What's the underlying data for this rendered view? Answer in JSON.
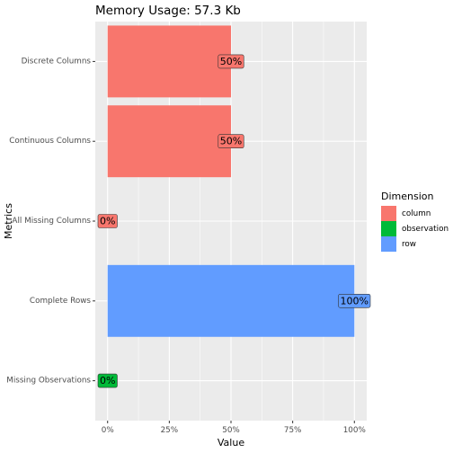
{
  "chart_data": {
    "type": "bar",
    "orientation": "horizontal",
    "title": "Memory Usage: 57.3 Kb",
    "xlabel": "Value",
    "ylabel": "Metrics",
    "xlim": [
      -0.05,
      1.05
    ],
    "x_ticks": [
      0,
      0.25,
      0.5,
      0.75,
      1
    ],
    "x_tick_labels": [
      "0%",
      "25%",
      "50%",
      "75%",
      "100%"
    ],
    "grid": true,
    "categories": [
      "Discrete Columns",
      "Continuous Columns",
      "All Missing Columns",
      "Complete Rows",
      "Missing Observations"
    ],
    "values": [
      0.5,
      0.5,
      0,
      1,
      0
    ],
    "value_labels": [
      "50%",
      "50%",
      "0%",
      "100%",
      "0%"
    ],
    "dimension": [
      "column",
      "column",
      "column",
      "row",
      "observation"
    ],
    "legend": {
      "title": "Dimension",
      "position": "right",
      "entries": [
        {
          "label": "column",
          "color": "#F8766D"
        },
        {
          "label": "observation",
          "color": "#00BA38"
        },
        {
          "label": "row",
          "color": "#619CFF"
        }
      ]
    },
    "colors": {
      "column": "#F8766D",
      "observation": "#00BA38",
      "row": "#619CFF"
    }
  }
}
